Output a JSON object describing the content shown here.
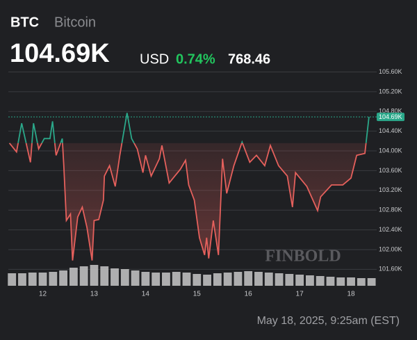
{
  "header": {
    "symbol": "BTC",
    "name": "Bitcoin",
    "price": "104.69K",
    "currency": "USD",
    "change_pct": "0.74%",
    "change": "768.46"
  },
  "footer": {
    "timestamp": "May 18, 2025, 9:25am (EST)",
    "watermark": "FINBOLD"
  },
  "chart_data": {
    "type": "baseline-line",
    "color_up": "#2ba88a",
    "color_down": "#e5605c",
    "volume_color": "#c8c8c8",
    "grid": true,
    "xlim": [
      11.33,
      18.5
    ],
    "xticks": [
      12,
      13,
      14,
      15,
      16,
      17,
      18
    ],
    "ylim": [
      101.45,
      105.72
    ],
    "yticks": [
      {
        "value": 101.6,
        "label": "101.60K"
      },
      {
        "value": 102.0,
        "label": "102.00K"
      },
      {
        "value": 102.4,
        "label": "102.40K"
      },
      {
        "value": 102.8,
        "label": "102.80K"
      },
      {
        "value": 103.2,
        "label": "103.20K"
      },
      {
        "value": 103.6,
        "label": "103.60K"
      },
      {
        "value": 104.0,
        "label": "104.00K"
      },
      {
        "value": 104.4,
        "label": "104.40K"
      },
      {
        "value": 104.8,
        "label": "104.80K"
      },
      {
        "value": 105.2,
        "label": "105.20K"
      },
      {
        "value": 105.6,
        "label": "105.60K"
      }
    ],
    "last": {
      "value": 104.69,
      "label": "104.69K"
    },
    "x": [
      11.35,
      11.49,
      11.59,
      11.76,
      11.82,
      11.92,
      12.03,
      12.14,
      12.19,
      12.26,
      12.38,
      12.41,
      12.46,
      12.54,
      12.58,
      12.68,
      12.77,
      12.86,
      12.96,
      13.0,
      13.09,
      13.18,
      13.2,
      13.3,
      13.41,
      13.5,
      13.64,
      13.73,
      13.84,
      13.95,
      14.0,
      14.11,
      14.27,
      14.32,
      14.46,
      14.57,
      14.68,
      14.78,
      14.84,
      14.95,
      15.05,
      15.15,
      15.19,
      15.23,
      15.32,
      15.42,
      15.5,
      15.58,
      15.72,
      15.88,
      16.03,
      16.16,
      16.32,
      16.43,
      16.59,
      16.76,
      16.86,
      16.92,
      17.14,
      17.35,
      17.41,
      17.62,
      17.84,
      18.0,
      18.11,
      18.27,
      18.35
    ],
    "series": [
      {
        "values": [
          104.16,
          103.98,
          104.56,
          103.77,
          104.56,
          104.04,
          104.25,
          104.25,
          104.6,
          103.91,
          104.25,
          103.7,
          102.59,
          102.72,
          101.78,
          102.66,
          102.86,
          102.45,
          101.78,
          102.59,
          102.61,
          103.0,
          103.49,
          103.7,
          103.28,
          103.91,
          104.77,
          104.25,
          104.04,
          103.56,
          103.91,
          103.49,
          103.84,
          104.11,
          103.35,
          103.49,
          103.63,
          103.81,
          103.31,
          103.0,
          102.24,
          101.89,
          102.24,
          101.82,
          102.59,
          101.89,
          103.84,
          103.14,
          103.7,
          104.18,
          103.77,
          103.91,
          103.7,
          104.11,
          103.7,
          103.49,
          102.86,
          103.56,
          103.28,
          102.79,
          103.07,
          103.31,
          103.31,
          103.45,
          103.91,
          103.95,
          104.69
        ]
      }
    ],
    "volume": {
      "x": [
        11.4,
        11.6,
        11.8,
        12.0,
        12.2,
        12.4,
        12.6,
        12.8,
        13.0,
        13.2,
        13.4,
        13.6,
        13.8,
        14.0,
        14.2,
        14.4,
        14.6,
        14.8,
        15.0,
        15.2,
        15.4,
        15.6,
        15.8,
        16.0,
        16.2,
        16.4,
        16.6,
        16.8,
        17.0,
        17.2,
        17.4,
        17.6,
        17.8,
        18.0,
        18.2,
        18.4
      ],
      "values": [
        18,
        18,
        19,
        19,
        20,
        22,
        26,
        28,
        30,
        28,
        25,
        24,
        22,
        20,
        19,
        19,
        20,
        19,
        17,
        16,
        18,
        19,
        20,
        21,
        20,
        19,
        18,
        17,
        16,
        15,
        14,
        13,
        12,
        12,
        11,
        11
      ]
    }
  }
}
